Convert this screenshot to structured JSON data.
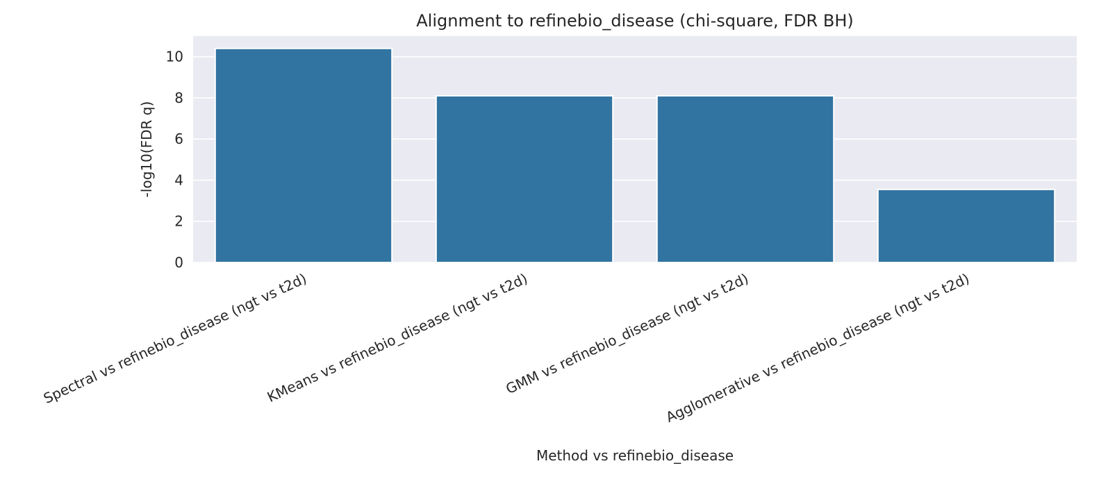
{
  "chart_data": {
    "type": "bar",
    "title": "Alignment to refinebio_disease (chi-square, FDR BH)",
    "xlabel": "Method vs refinebio_disease",
    "ylabel": "-log10(FDR q)",
    "categories": [
      "Spectral vs refinebio_disease (ngt vs t2d)",
      "KMeans vs refinebio_disease (ngt vs t2d)",
      "GMM vs refinebio_disease (ngt vs t2d)",
      "Agglomerative vs refinebio_disease (ngt vs t2d)"
    ],
    "values": [
      10.4,
      8.1,
      8.1,
      3.55
    ],
    "ylim": [
      0,
      11
    ],
    "yticks": [
      0,
      2,
      4,
      6,
      8,
      10
    ],
    "grid": true,
    "bar_color": "#3274a1",
    "background_color": "#eaeaf2",
    "grid_color": "#ffffff"
  }
}
